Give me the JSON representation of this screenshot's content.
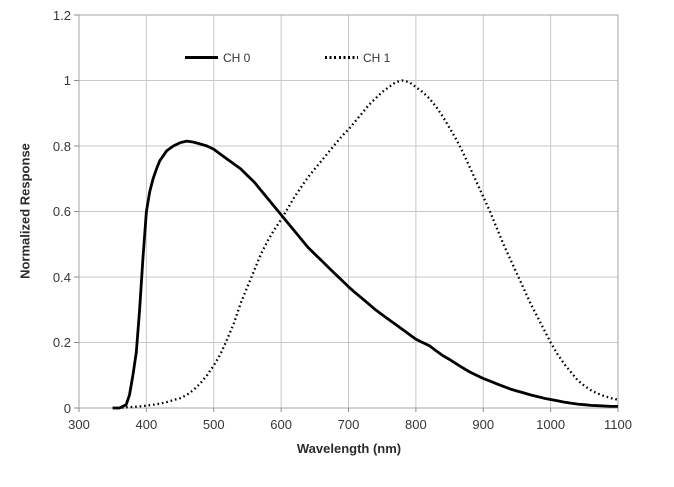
{
  "chart_data": {
    "type": "line",
    "title": "",
    "xlabel": "Wavelength (nm)",
    "ylabel": "Normalized Response",
    "xlim": [
      300,
      1100
    ],
    "ylim": [
      0,
      1.2
    ],
    "x_ticks": [
      300,
      400,
      500,
      600,
      700,
      800,
      900,
      1000,
      1100
    ],
    "y_ticks": [
      0,
      0.2,
      0.4,
      0.6,
      0.8,
      1,
      1.2
    ],
    "grid": true,
    "legend_position": "inside-top",
    "colors": {
      "curve": "#000000",
      "gridline": "#c8c8c8",
      "plot_border": "#a6a6a6",
      "tick_mark": "#8c8c8c",
      "text": "#363636"
    },
    "series": [
      {
        "name": "CH 0",
        "line_style": "solid",
        "color": "#000000",
        "x": [
          350,
          355,
          360,
          365,
          370,
          375,
          380,
          385,
          390,
          395,
          400,
          405,
          410,
          415,
          420,
          430,
          440,
          450,
          460,
          470,
          480,
          490,
          500,
          510,
          520,
          530,
          540,
          550,
          560,
          570,
          580,
          590,
          600,
          610,
          620,
          630,
          640,
          650,
          660,
          670,
          680,
          690,
          700,
          710,
          720,
          730,
          740,
          750,
          760,
          770,
          780,
          790,
          800,
          810,
          820,
          830,
          840,
          850,
          860,
          870,
          880,
          890,
          900,
          910,
          920,
          930,
          940,
          950,
          960,
          970,
          980,
          990,
          1000,
          1010,
          1020,
          1030,
          1040,
          1050,
          1060,
          1070,
          1080,
          1090,
          1100
        ],
        "y": [
          0,
          0,
          0,
          0.005,
          0.01,
          0.04,
          0.1,
          0.17,
          0.3,
          0.46,
          0.6,
          0.66,
          0.7,
          0.73,
          0.755,
          0.785,
          0.8,
          0.81,
          0.815,
          0.812,
          0.806,
          0.8,
          0.79,
          0.775,
          0.76,
          0.745,
          0.73,
          0.71,
          0.69,
          0.665,
          0.64,
          0.615,
          0.59,
          0.565,
          0.54,
          0.515,
          0.49,
          0.47,
          0.45,
          0.43,
          0.41,
          0.39,
          0.37,
          0.352,
          0.335,
          0.318,
          0.3,
          0.285,
          0.27,
          0.255,
          0.24,
          0.225,
          0.21,
          0.2,
          0.19,
          0.175,
          0.16,
          0.148,
          0.135,
          0.122,
          0.11,
          0.1,
          0.09,
          0.082,
          0.074,
          0.066,
          0.058,
          0.052,
          0.046,
          0.04,
          0.035,
          0.03,
          0.026,
          0.022,
          0.018,
          0.015,
          0.012,
          0.01,
          0.008,
          0.007,
          0.006,
          0.005,
          0.005
        ]
      },
      {
        "name": "CH 1",
        "line_style": "dotted",
        "color": "#000000",
        "x": [
          350,
          360,
          370,
          380,
          390,
          400,
          410,
          420,
          430,
          440,
          450,
          460,
          470,
          480,
          490,
          500,
          510,
          520,
          530,
          540,
          550,
          560,
          570,
          580,
          590,
          600,
          610,
          620,
          630,
          640,
          650,
          660,
          670,
          680,
          690,
          700,
          710,
          720,
          730,
          740,
          750,
          760,
          770,
          780,
          790,
          800,
          810,
          820,
          830,
          840,
          850,
          860,
          870,
          880,
          890,
          900,
          910,
          920,
          930,
          940,
          950,
          960,
          970,
          980,
          990,
          1000,
          1010,
          1020,
          1030,
          1040,
          1050,
          1060,
          1070,
          1080,
          1090,
          1100
        ],
        "y": [
          0,
          0,
          0.002,
          0.003,
          0.005,
          0.007,
          0.01,
          0.013,
          0.018,
          0.024,
          0.03,
          0.04,
          0.055,
          0.075,
          0.1,
          0.13,
          0.165,
          0.21,
          0.26,
          0.32,
          0.37,
          0.42,
          0.47,
          0.51,
          0.545,
          0.575,
          0.61,
          0.645,
          0.675,
          0.705,
          0.73,
          0.755,
          0.78,
          0.805,
          0.83,
          0.85,
          0.875,
          0.9,
          0.925,
          0.945,
          0.965,
          0.98,
          0.995,
          1,
          0.995,
          0.98,
          0.965,
          0.945,
          0.92,
          0.89,
          0.855,
          0.82,
          0.78,
          0.735,
          0.69,
          0.645,
          0.6,
          0.55,
          0.5,
          0.455,
          0.41,
          0.365,
          0.32,
          0.28,
          0.24,
          0.2,
          0.165,
          0.135,
          0.11,
          0.085,
          0.068,
          0.054,
          0.044,
          0.036,
          0.03,
          0.025
        ]
      }
    ]
  }
}
